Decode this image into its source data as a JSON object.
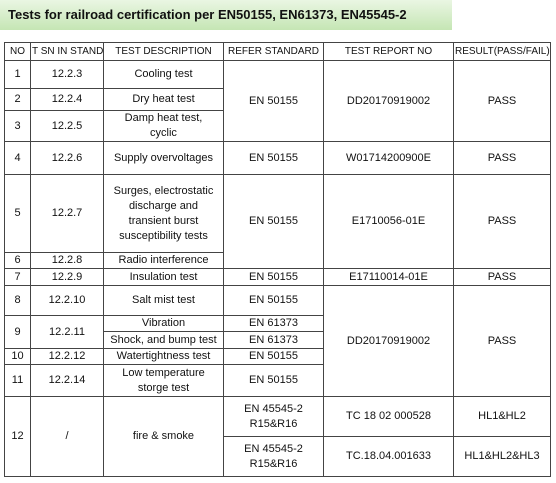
{
  "header": {
    "title": "Tests for railroad certification per EN50155, EN61373, EN45545-2"
  },
  "table": {
    "columns": [
      "NO",
      "T SN IN STAND.",
      "TEST DESCRIPTION",
      "REFER STANDARD",
      "TEST  REPORT NO",
      "RESULT(PASS/FAIL)"
    ],
    "rows": [
      [
        "1",
        "12.2.3",
        "Cooling test",
        "EN 50155",
        "DD20170919002",
        "PASS"
      ],
      [
        "2",
        "12.2.4",
        "Dry heat test"
      ],
      [
        "3",
        "12.2.5",
        "Damp heat test, cyclic"
      ],
      [
        "4",
        "12.2.6",
        "Supply overvoltages",
        "EN 50155",
        "W01714200900E",
        "PASS"
      ],
      [
        "5",
        "12.2.7",
        "Surges, electrostatic discharge and transient burst susceptibility tests",
        "EN 50155",
        "E1710056-01E",
        "PASS"
      ],
      [
        "6",
        "12.2.8",
        "Radio interference"
      ],
      [
        "7",
        "12.2.9",
        "Insulation test",
        "EN 50155",
        "E17110014-01E",
        "PASS"
      ],
      [
        "8",
        "12.2.10",
        "Salt mist test",
        "EN 50155",
        "DD20170919002",
        "PASS"
      ],
      [
        "9",
        "12.2.11",
        "Vibration",
        "EN 61373"
      ],
      [
        "Shock, and bump test",
        "EN 61373"
      ],
      [
        "10",
        "12.2.12",
        "Watertightness test",
        "EN 50155"
      ],
      [
        "11",
        "12.2.14",
        "Low temperature storge test",
        "EN 50155"
      ],
      [
        "12",
        "/",
        "fire & smoke",
        "EN 45545-2 R15&R16",
        "TC 18 02 000528",
        "HL1&HL2"
      ],
      [
        "EN 45545-2 R15&R16",
        "TC.18.04.001633",
        "HL1&HL2&HL3"
      ]
    ]
  }
}
